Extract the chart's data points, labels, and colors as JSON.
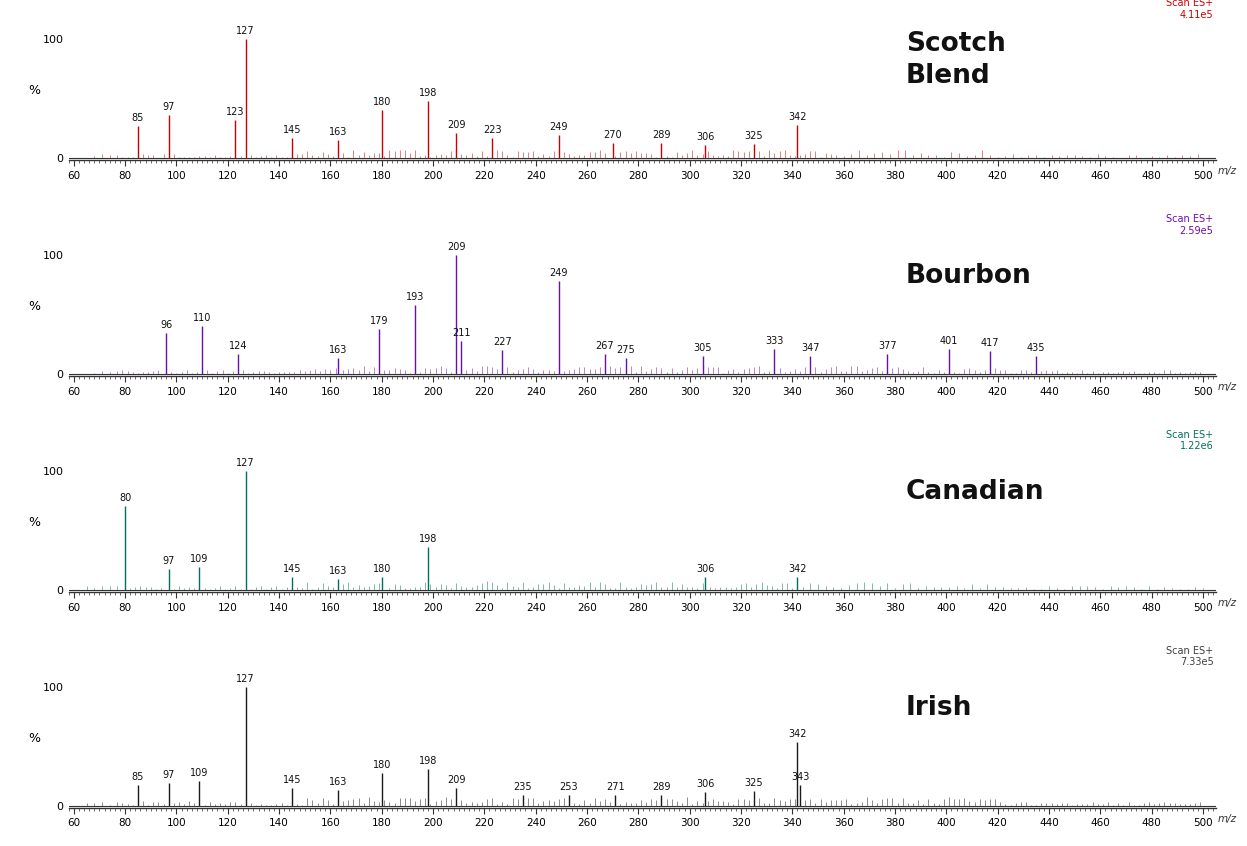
{
  "panels": [
    {
      "name": "Scotch\nBlend",
      "color": "#cc0000",
      "scan_label": "Scan ES+\n4.11e5",
      "scan_color": "#cc0000",
      "peaks": [
        {
          "mz": 85,
          "intensity": 27,
          "label": "85"
        },
        {
          "mz": 97,
          "intensity": 36,
          "label": "97"
        },
        {
          "mz": 123,
          "intensity": 32,
          "label": "123"
        },
        {
          "mz": 127,
          "intensity": 100,
          "label": "127"
        },
        {
          "mz": 145,
          "intensity": 17,
          "label": "145"
        },
        {
          "mz": 163,
          "intensity": 15,
          "label": "163"
        },
        {
          "mz": 180,
          "intensity": 40,
          "label": "180"
        },
        {
          "mz": 198,
          "intensity": 48,
          "label": "198"
        },
        {
          "mz": 209,
          "intensity": 21,
          "label": "209"
        },
        {
          "mz": 223,
          "intensity": 17,
          "label": "223"
        },
        {
          "mz": 249,
          "intensity": 19,
          "label": "249"
        },
        {
          "mz": 270,
          "intensity": 13,
          "label": "270"
        },
        {
          "mz": 289,
          "intensity": 13,
          "label": "289"
        },
        {
          "mz": 306,
          "intensity": 11,
          "label": "306"
        },
        {
          "mz": 325,
          "intensity": 12,
          "label": "325"
        },
        {
          "mz": 342,
          "intensity": 28,
          "label": "342"
        }
      ],
      "minor_peaks": [
        68,
        71,
        74,
        77,
        79,
        81,
        83,
        87,
        89,
        91,
        93,
        95,
        99,
        101,
        103,
        105,
        107,
        109,
        111,
        113,
        115,
        117,
        119,
        121,
        125,
        129,
        131,
        133,
        135,
        137,
        139,
        141,
        143,
        147,
        149,
        151,
        153,
        155,
        157,
        159,
        161,
        165,
        167,
        169,
        171,
        173,
        175,
        177,
        179,
        181,
        183,
        185,
        187,
        189,
        191,
        193,
        195,
        197,
        199,
        201,
        203,
        205,
        207,
        211,
        213,
        215,
        217,
        219,
        221,
        225,
        227,
        229,
        231,
        233,
        235,
        237,
        239,
        241,
        243,
        245,
        247,
        251,
        253,
        255,
        257,
        259,
        261,
        263,
        265,
        267,
        271,
        273,
        275,
        277,
        279,
        281,
        283,
        285,
        287,
        291,
        293,
        295,
        297,
        299,
        301,
        303,
        305,
        307,
        309,
        311,
        313,
        315,
        317,
        319,
        321,
        323,
        327,
        329,
        331,
        333,
        335,
        337,
        339,
        341,
        343,
        345,
        347,
        349,
        351,
        353,
        355,
        357,
        360,
        363,
        366,
        369,
        372,
        375,
        378,
        381,
        384,
        387,
        390,
        393,
        396,
        399,
        402,
        405,
        408,
        411,
        414,
        417,
        420,
        423,
        426,
        429,
        432,
        435,
        438,
        441,
        444,
        447,
        450,
        453,
        456,
        459,
        462,
        465,
        468,
        471,
        474,
        477,
        480,
        483,
        486,
        489,
        492,
        495,
        498
      ],
      "noise_seed": 42
    },
    {
      "name": "Bourbon",
      "color": "#6a0dad",
      "scan_label": "Scan ES+\n2.59e5",
      "scan_color": "#6a0dad",
      "peaks": [
        {
          "mz": 96,
          "intensity": 34,
          "label": "96"
        },
        {
          "mz": 110,
          "intensity": 40,
          "label": "110"
        },
        {
          "mz": 124,
          "intensity": 17,
          "label": "124"
        },
        {
          "mz": 163,
          "intensity": 13,
          "label": "163"
        },
        {
          "mz": 179,
          "intensity": 38,
          "label": "179"
        },
        {
          "mz": 193,
          "intensity": 58,
          "label": "193"
        },
        {
          "mz": 209,
          "intensity": 100,
          "label": "209"
        },
        {
          "mz": 211,
          "intensity": 28,
          "label": "211"
        },
        {
          "mz": 227,
          "intensity": 20,
          "label": "227"
        },
        {
          "mz": 249,
          "intensity": 78,
          "label": "249"
        },
        {
          "mz": 267,
          "intensity": 17,
          "label": "267"
        },
        {
          "mz": 275,
          "intensity": 13,
          "label": "275"
        },
        {
          "mz": 305,
          "intensity": 15,
          "label": "305"
        },
        {
          "mz": 333,
          "intensity": 21,
          "label": "333"
        },
        {
          "mz": 347,
          "intensity": 15,
          "label": "347"
        },
        {
          "mz": 377,
          "intensity": 17,
          "label": "377"
        },
        {
          "mz": 401,
          "intensity": 21,
          "label": "401"
        },
        {
          "mz": 417,
          "intensity": 19,
          "label": "417"
        },
        {
          "mz": 435,
          "intensity": 15,
          "label": "435"
        }
      ],
      "minor_peaks": [
        68,
        71,
        74,
        77,
        79,
        81,
        83,
        85,
        87,
        89,
        91,
        93,
        98,
        100,
        102,
        104,
        106,
        108,
        112,
        114,
        116,
        118,
        120,
        122,
        126,
        128,
        130,
        132,
        134,
        136,
        138,
        140,
        142,
        144,
        146,
        148,
        150,
        152,
        154,
        156,
        158,
        160,
        162,
        165,
        167,
        169,
        171,
        173,
        175,
        177,
        181,
        183,
        185,
        187,
        189,
        191,
        195,
        197,
        199,
        201,
        203,
        205,
        207,
        213,
        215,
        217,
        219,
        221,
        223,
        225,
        229,
        231,
        233,
        235,
        237,
        239,
        241,
        243,
        245,
        247,
        251,
        253,
        255,
        257,
        259,
        261,
        263,
        265,
        269,
        271,
        273,
        277,
        279,
        281,
        283,
        285,
        287,
        289,
        291,
        293,
        295,
        297,
        299,
        301,
        303,
        307,
        309,
        311,
        313,
        315,
        317,
        319,
        321,
        323,
        325,
        327,
        329,
        331,
        335,
        337,
        339,
        341,
        343,
        345,
        349,
        351,
        353,
        355,
        357,
        359,
        361,
        363,
        365,
        367,
        369,
        371,
        373,
        375,
        379,
        381,
        383,
        385,
        387,
        389,
        391,
        393,
        395,
        397,
        399,
        403,
        405,
        407,
        409,
        411,
        413,
        415,
        419,
        421,
        423,
        425,
        427,
        429,
        431,
        433,
        437,
        439,
        441,
        443,
        445,
        447,
        449,
        451,
        453,
        455,
        457,
        459,
        461,
        463,
        465,
        467,
        469,
        471,
        473,
        475,
        477,
        479,
        481,
        483,
        485,
        487,
        489,
        491,
        493,
        495,
        497,
        499
      ],
      "noise_seed": 7
    },
    {
      "name": "Canadian",
      "color": "#007060",
      "scan_label": "Scan ES+\n1.22e6",
      "scan_color": "#007060",
      "peaks": [
        {
          "mz": 80,
          "intensity": 70,
          "label": "80"
        },
        {
          "mz": 97,
          "intensity": 17,
          "label": "97"
        },
        {
          "mz": 109,
          "intensity": 19,
          "label": "109"
        },
        {
          "mz": 127,
          "intensity": 100,
          "label": "127"
        },
        {
          "mz": 145,
          "intensity": 11,
          "label": "145"
        },
        {
          "mz": 163,
          "intensity": 9,
          "label": "163"
        },
        {
          "mz": 180,
          "intensity": 11,
          "label": "180"
        },
        {
          "mz": 198,
          "intensity": 36,
          "label": "198"
        },
        {
          "mz": 306,
          "intensity": 11,
          "label": "306"
        },
        {
          "mz": 342,
          "intensity": 11,
          "label": "342"
        }
      ],
      "minor_peaks": [
        65,
        68,
        71,
        74,
        77,
        82,
        84,
        86,
        88,
        90,
        92,
        94,
        99,
        101,
        103,
        105,
        107,
        111,
        113,
        115,
        117,
        119,
        121,
        123,
        125,
        129,
        131,
        133,
        135,
        137,
        139,
        141,
        143,
        147,
        149,
        151,
        153,
        155,
        157,
        159,
        161,
        165,
        167,
        169,
        171,
        173,
        175,
        177,
        179,
        183,
        185,
        187,
        189,
        191,
        193,
        195,
        197,
        199,
        201,
        203,
        205,
        207,
        209,
        211,
        213,
        215,
        217,
        219,
        221,
        223,
        225,
        227,
        229,
        231,
        233,
        235,
        237,
        239,
        241,
        243,
        245,
        247,
        249,
        251,
        253,
        255,
        257,
        259,
        261,
        263,
        265,
        267,
        269,
        271,
        273,
        275,
        277,
        279,
        281,
        283,
        285,
        287,
        289,
        291,
        293,
        295,
        297,
        299,
        301,
        303,
        305,
        308,
        310,
        312,
        314,
        316,
        318,
        320,
        322,
        324,
        326,
        328,
        330,
        332,
        334,
        336,
        338,
        340,
        344,
        347,
        350,
        353,
        356,
        359,
        362,
        365,
        368,
        371,
        374,
        377,
        380,
        383,
        386,
        389,
        392,
        395,
        398,
        401,
        404,
        407,
        410,
        413,
        416,
        419,
        422,
        425,
        428,
        431,
        434,
        437,
        440,
        443,
        446,
        449,
        452,
        455,
        458,
        461,
        464,
        467,
        470,
        473,
        476,
        479,
        482,
        485,
        488,
        491,
        494,
        497,
        500
      ],
      "noise_seed": 13
    },
    {
      "name": "Irish",
      "color": "#1a1a1a",
      "scan_label": "Scan ES+\n7.33e5",
      "scan_color": "#404040",
      "peaks": [
        {
          "mz": 85,
          "intensity": 17,
          "label": "85"
        },
        {
          "mz": 97,
          "intensity": 19,
          "label": "97"
        },
        {
          "mz": 109,
          "intensity": 21,
          "label": "109"
        },
        {
          "mz": 127,
          "intensity": 100,
          "label": "127"
        },
        {
          "mz": 145,
          "intensity": 15,
          "label": "145"
        },
        {
          "mz": 163,
          "intensity": 13,
          "label": "163"
        },
        {
          "mz": 180,
          "intensity": 27,
          "label": "180"
        },
        {
          "mz": 198,
          "intensity": 31,
          "label": "198"
        },
        {
          "mz": 209,
          "intensity": 15,
          "label": "209"
        },
        {
          "mz": 235,
          "intensity": 9,
          "label": "235"
        },
        {
          "mz": 253,
          "intensity": 9,
          "label": "253"
        },
        {
          "mz": 271,
          "intensity": 9,
          "label": "271"
        },
        {
          "mz": 289,
          "intensity": 9,
          "label": "289"
        },
        {
          "mz": 306,
          "intensity": 11,
          "label": "306"
        },
        {
          "mz": 325,
          "intensity": 12,
          "label": "325"
        },
        {
          "mz": 342,
          "intensity": 53,
          "label": "342"
        },
        {
          "mz": 343,
          "intensity": 17,
          "label": "343"
        }
      ],
      "minor_peaks": [
        65,
        68,
        71,
        74,
        77,
        79,
        81,
        83,
        87,
        89,
        91,
        93,
        95,
        99,
        101,
        103,
        105,
        107,
        111,
        113,
        115,
        117,
        119,
        121,
        123,
        125,
        129,
        131,
        133,
        135,
        137,
        139,
        141,
        143,
        147,
        149,
        151,
        153,
        155,
        157,
        159,
        161,
        165,
        167,
        169,
        171,
        173,
        175,
        177,
        179,
        181,
        183,
        185,
        187,
        189,
        191,
        193,
        195,
        197,
        199,
        201,
        203,
        205,
        207,
        211,
        213,
        215,
        217,
        219,
        221,
        223,
        225,
        227,
        229,
        231,
        233,
        237,
        239,
        241,
        243,
        245,
        247,
        249,
        251,
        255,
        257,
        259,
        261,
        263,
        265,
        267,
        269,
        273,
        275,
        277,
        279,
        281,
        283,
        285,
        287,
        291,
        293,
        295,
        297,
        299,
        301,
        303,
        305,
        307,
        309,
        311,
        313,
        315,
        317,
        319,
        321,
        323,
        327,
        329,
        331,
        333,
        335,
        337,
        339,
        341,
        345,
        347,
        349,
        351,
        353,
        355,
        357,
        359,
        361,
        363,
        365,
        367,
        369,
        371,
        373,
        375,
        377,
        379,
        381,
        383,
        385,
        387,
        389,
        391,
        393,
        395,
        397,
        399,
        401,
        403,
        405,
        407,
        409,
        411,
        413,
        415,
        417,
        419,
        421,
        423,
        425,
        427,
        429,
        431,
        433,
        435,
        437,
        439,
        441,
        443,
        445,
        447,
        449,
        451,
        453,
        455,
        457,
        459,
        461,
        463,
        465,
        467,
        469,
        471,
        473,
        475,
        477,
        479,
        481,
        483,
        485,
        487,
        489,
        491,
        493,
        495,
        497,
        499
      ],
      "noise_seed": 99
    }
  ],
  "xlim": [
    58,
    505
  ],
  "xticks": [
    60,
    80,
    100,
    120,
    140,
    160,
    180,
    200,
    220,
    240,
    260,
    280,
    300,
    320,
    340,
    360,
    380,
    400,
    420,
    440,
    460,
    480,
    500
  ],
  "ylim": [
    -2,
    115
  ],
  "ytick_positions": [
    0,
    100
  ],
  "ytick_labels": [
    "0",
    "100"
  ],
  "background_color": "#ffffff"
}
